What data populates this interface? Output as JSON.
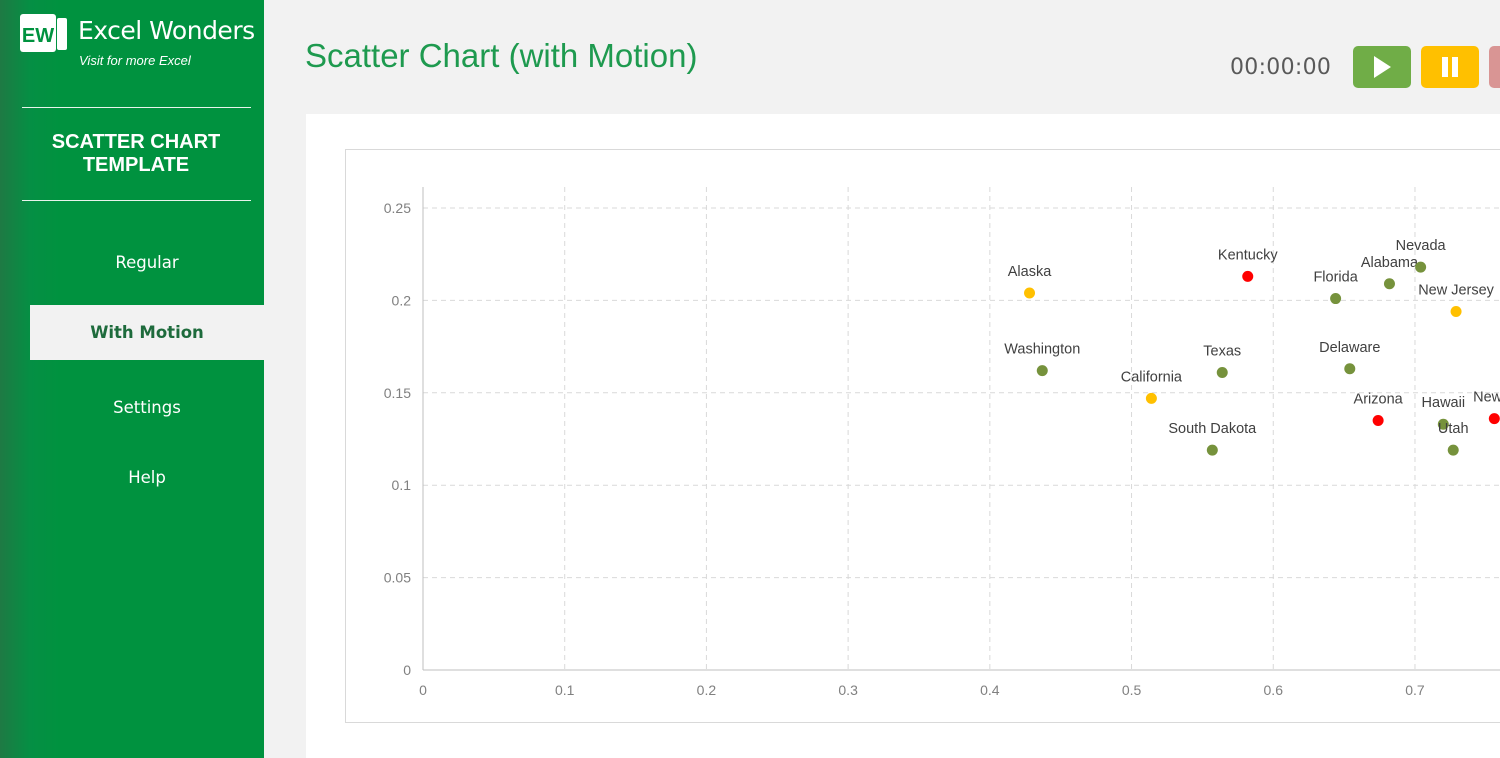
{
  "brand": {
    "badge": "EW",
    "name": "Excel Wonders",
    "tagline": "Visit for more Excel"
  },
  "sidebar": {
    "title_line1": "SCATTER CHART",
    "title_line2": "TEMPLATE",
    "items": [
      {
        "label": "Regular",
        "active": false
      },
      {
        "label": "With Motion",
        "active": true
      },
      {
        "label": "Settings",
        "active": false
      },
      {
        "label": "Help",
        "active": false
      }
    ]
  },
  "header": {
    "title": "Scatter Chart (with Motion)",
    "timer": "00:00:00",
    "buttons": [
      {
        "name": "play",
        "icon": "play-icon",
        "color": "#70ad47"
      },
      {
        "name": "pause",
        "icon": "pause-icon",
        "color": "#ffc000"
      },
      {
        "name": "stop",
        "icon": "stop-icon",
        "color": "#d99594"
      }
    ]
  },
  "colors": {
    "brand_green": "#00923f",
    "title_green": "#1e9a4f",
    "green_point": "#76923c",
    "yellow_point": "#ffc000",
    "red_point": "#ff0000"
  },
  "chart_data": {
    "type": "scatter",
    "title": "",
    "xlabel": "",
    "ylabel": "",
    "xlim": [
      0,
      0.76
    ],
    "ylim": [
      0,
      0.26
    ],
    "x_ticks": [
      "0",
      "0.1",
      "0.2",
      "0.3",
      "0.4",
      "0.5",
      "0.6",
      "0.7"
    ],
    "y_ticks": [
      "0",
      "0.05",
      "0.1",
      "0.15",
      "0.2",
      "0.25"
    ],
    "grid": true,
    "legend": "none",
    "points": [
      {
        "label": "Alaska",
        "x": 0.428,
        "y": 0.204,
        "color": "yellow"
      },
      {
        "label": "Kentucky",
        "x": 0.582,
        "y": 0.213,
        "color": "red"
      },
      {
        "label": "Washington",
        "x": 0.437,
        "y": 0.162,
        "color": "green"
      },
      {
        "label": "Texas",
        "x": 0.564,
        "y": 0.161,
        "color": "green"
      },
      {
        "label": "California",
        "x": 0.514,
        "y": 0.147,
        "color": "yellow"
      },
      {
        "label": "South Dakota",
        "x": 0.557,
        "y": 0.119,
        "color": "green"
      },
      {
        "label": "Florida",
        "x": 0.644,
        "y": 0.201,
        "color": "green"
      },
      {
        "label": "Alabama",
        "x": 0.682,
        "y": 0.209,
        "color": "green"
      },
      {
        "label": "Nevada",
        "x": 0.704,
        "y": 0.218,
        "color": "green"
      },
      {
        "label": "New Jersey",
        "x": 0.729,
        "y": 0.194,
        "color": "yellow"
      },
      {
        "label": "Delaware",
        "x": 0.654,
        "y": 0.163,
        "color": "green"
      },
      {
        "label": "Arizona",
        "x": 0.674,
        "y": 0.135,
        "color": "red"
      },
      {
        "label": "Hawaii",
        "x": 0.72,
        "y": 0.133,
        "color": "green"
      },
      {
        "label": "Utah",
        "x": 0.727,
        "y": 0.119,
        "color": "green"
      },
      {
        "label": "New Y",
        "x": 0.756,
        "y": 0.136,
        "color": "red"
      }
    ]
  }
}
